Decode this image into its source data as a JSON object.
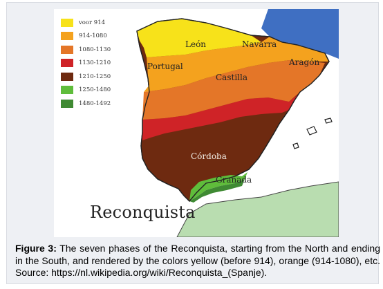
{
  "legend": [
    {
      "label": "voor 914",
      "color": "#f7e21a"
    },
    {
      "label": "914-1080",
      "color": "#f4a21e"
    },
    {
      "label": "1080-1130",
      "color": "#e47628"
    },
    {
      "label": "1130-1210",
      "color": "#cf2327"
    },
    {
      "label": "1210-1250",
      "color": "#6e2a10"
    },
    {
      "label": "1250-1480",
      "color": "#5fbd3b"
    },
    {
      "label": "1480-1492",
      "color": "#3f8a33"
    }
  ],
  "regions": {
    "leon": "León",
    "navarra": "Navarra",
    "portugal": "Portugal",
    "aragon": "Aragón",
    "castilla": "Castilla",
    "cordoba": "Córdoba",
    "granada": "Granada"
  },
  "map_title": "Reconquista",
  "caption": {
    "label": "Figure 3:",
    "text": " The seven phases of the Reconquista, starting from the North and ending in the South, and rendered by the colors yellow (before 914), orange (914-1080), etc. Source: https://nl.wikipedia.org/wiki/Reconquista_(Spanje)."
  },
  "colors": {
    "sea": "#ffffff",
    "france": "#3f6fc2",
    "africa": "#b9ddb0",
    "outline": "#222222"
  }
}
